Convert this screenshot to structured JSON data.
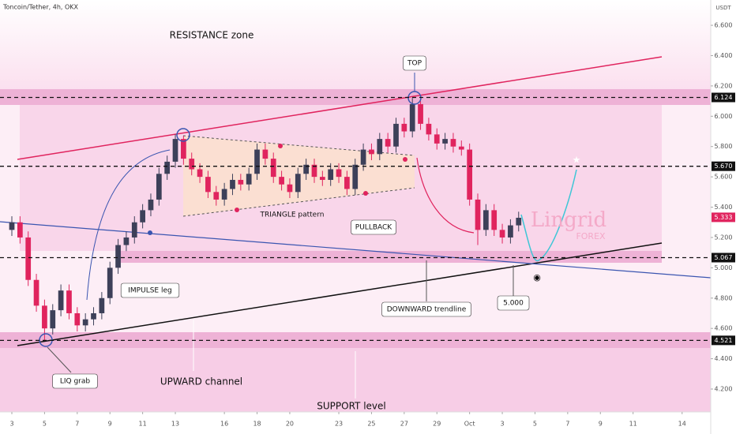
{
  "chart_data": {
    "type": "candlestick",
    "title": "Toncoin/Tether, 4h, OKX",
    "y_axis_label": "USDT",
    "x": [
      0,
      0.5,
      1,
      1.5,
      2,
      2.5,
      3,
      3.5,
      4,
      4.5,
      5,
      5.5,
      6,
      6.5,
      7,
      7.5,
      8,
      8.5,
      9,
      9.5,
      10,
      10.5,
      11,
      11.5,
      12,
      12.5,
      13,
      13.5,
      14,
      14.5,
      15,
      15.5,
      16,
      16.5,
      17,
      17.5,
      18,
      18.5,
      19,
      19.5,
      20,
      20.5,
      21,
      21.5,
      22,
      22.5,
      23,
      23.5,
      24,
      24.5,
      25,
      25.5,
      26,
      26.5,
      27,
      27.5,
      28,
      28.5,
      29,
      29.5,
      30,
      30.5,
      31
    ],
    "open": [
      5.25,
      5.3,
      5.2,
      4.92,
      4.75,
      4.6,
      4.72,
      4.85,
      4.7,
      4.62,
      4.66,
      4.7,
      4.8,
      5.0,
      5.15,
      5.2,
      5.3,
      5.38,
      5.45,
      5.62,
      5.7,
      5.85,
      5.72,
      5.65,
      5.6,
      5.5,
      5.45,
      5.52,
      5.58,
      5.55,
      5.62,
      5.78,
      5.72,
      5.6,
      5.55,
      5.5,
      5.62,
      5.68,
      5.6,
      5.58,
      5.65,
      5.6,
      5.52,
      5.68,
      5.78,
      5.75,
      5.85,
      5.8,
      5.95,
      5.9,
      6.08,
      5.95,
      5.88,
      5.82,
      5.85,
      5.8,
      5.78,
      5.45,
      5.25,
      5.38,
      5.25,
      5.2,
      5.28
    ],
    "high": [
      5.34,
      5.34,
      5.24,
      4.96,
      4.79,
      4.76,
      4.89,
      4.89,
      4.74,
      4.7,
      4.74,
      4.84,
      5.04,
      5.19,
      5.24,
      5.34,
      5.42,
      5.49,
      5.66,
      5.74,
      5.88,
      5.87,
      5.76,
      5.69,
      5.64,
      5.54,
      5.56,
      5.62,
      5.62,
      5.66,
      5.82,
      5.82,
      5.76,
      5.64,
      5.59,
      5.66,
      5.72,
      5.72,
      5.64,
      5.69,
      5.69,
      5.64,
      5.72,
      5.82,
      5.82,
      5.89,
      5.89,
      5.99,
      5.99,
      6.12,
      6.1,
      5.99,
      5.92,
      5.89,
      5.89,
      5.84,
      5.82,
      5.49,
      5.42,
      5.42,
      5.29,
      5.32,
      5.37
    ],
    "low": [
      5.21,
      5.16,
      4.88,
      4.71,
      4.52,
      4.56,
      4.68,
      4.66,
      4.58,
      4.58,
      4.62,
      4.66,
      4.76,
      4.96,
      5.11,
      5.16,
      5.26,
      5.34,
      5.41,
      5.58,
      5.66,
      5.68,
      5.61,
      5.56,
      5.46,
      5.41,
      5.41,
      5.48,
      5.51,
      5.51,
      5.58,
      5.68,
      5.56,
      5.51,
      5.46,
      5.46,
      5.58,
      5.56,
      5.54,
      5.54,
      5.56,
      5.48,
      5.48,
      5.64,
      5.71,
      5.71,
      5.76,
      5.76,
      5.86,
      5.86,
      5.91,
      5.84,
      5.78,
      5.78,
      5.76,
      5.74,
      5.41,
      5.15,
      5.21,
      5.21,
      5.16,
      5.16,
      5.24
    ],
    "close": [
      5.3,
      5.2,
      4.92,
      4.75,
      4.6,
      4.72,
      4.85,
      4.7,
      4.62,
      4.66,
      4.7,
      4.8,
      5.0,
      5.15,
      5.2,
      5.3,
      5.38,
      5.45,
      5.62,
      5.7,
      5.85,
      5.72,
      5.65,
      5.6,
      5.5,
      5.45,
      5.52,
      5.58,
      5.55,
      5.62,
      5.78,
      5.72,
      5.6,
      5.55,
      5.5,
      5.62,
      5.68,
      5.6,
      5.58,
      5.65,
      5.6,
      5.52,
      5.68,
      5.78,
      5.75,
      5.85,
      5.8,
      5.95,
      5.9,
      6.08,
      5.95,
      5.88,
      5.82,
      5.85,
      5.8,
      5.78,
      5.45,
      5.25,
      5.38,
      5.25,
      5.2,
      5.28,
      5.33
    ],
    "up_color": "#3d4059",
    "down_color": "#e0245e",
    "xlim": [
      -0.725,
      42.75
    ],
    "xticks": [
      {
        "value": 0,
        "label": "3"
      },
      {
        "value": 2,
        "label": "5"
      },
      {
        "value": 4,
        "label": "7"
      },
      {
        "value": 6,
        "label": "9"
      },
      {
        "value": 8,
        "label": "11"
      },
      {
        "value": 10,
        "label": "13"
      },
      {
        "value": 13,
        "label": "16"
      },
      {
        "value": 15,
        "label": "18"
      },
      {
        "value": 17,
        "label": "20"
      },
      {
        "value": 20,
        "label": "23"
      },
      {
        "value": 22,
        "label": "25"
      },
      {
        "value": 24,
        "label": "27"
      },
      {
        "value": 26,
        "label": "29"
      },
      {
        "value": 28,
        "label": "Oct"
      },
      {
        "value": 30,
        "label": "3"
      },
      {
        "value": 32,
        "label": "5"
      },
      {
        "value": 34,
        "label": "7"
      },
      {
        "value": 36,
        "label": "9"
      },
      {
        "value": 38,
        "label": "11"
      },
      {
        "value": 41,
        "label": "14"
      }
    ],
    "ylim": [
      4.049,
      6.767
    ],
    "yticks": [
      {
        "value": 6.6,
        "label": "6.600"
      },
      {
        "value": 6.4,
        "label": "6.400"
      },
      {
        "value": 6.2,
        "label": "6.200"
      },
      {
        "value": 6.0,
        "label": "6.000"
      },
      {
        "value": 5.8,
        "label": "5.800"
      },
      {
        "value": 5.6,
        "label": "5.600"
      },
      {
        "value": 5.4,
        "label": "5.400"
      },
      {
        "value": 5.2,
        "label": "5.200"
      },
      {
        "value": 5.0,
        "label": "5.000"
      },
      {
        "value": 4.8,
        "label": "4.800"
      },
      {
        "value": 4.6,
        "label": "4.600"
      },
      {
        "value": 4.4,
        "label": "4.400"
      },
      {
        "value": 4.2,
        "label": "4.200"
      }
    ],
    "levels": [
      6.124,
      {
        "value": 5.67,
        "label": "5.670"
      },
      5.067,
      4.521
    ],
    "last_price": 5.333,
    "annotations": [
      "RESISTANCE zone",
      "TOP",
      "TRIANGLE pattern",
      "PULLBACK",
      "IMPULSE leg",
      "DOWNWARD trendline",
      "5.000",
      "LIQ grab",
      "UPWARD channel",
      "SUPPORT level",
      "Lingrid",
      "FOREX"
    ]
  }
}
